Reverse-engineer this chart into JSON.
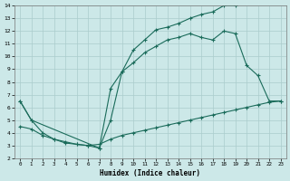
{
  "xlabel": "Humidex (Indice chaleur)",
  "bg_color": "#cce8e8",
  "grid_color": "#aacccc",
  "line_color": "#1a6b5a",
  "xlim": [
    -0.5,
    23.5
  ],
  "ylim": [
    2,
    14
  ],
  "xticks": [
    0,
    1,
    2,
    3,
    4,
    5,
    6,
    7,
    8,
    9,
    10,
    11,
    12,
    13,
    14,
    15,
    16,
    17,
    18,
    19,
    20,
    21,
    22,
    23
  ],
  "yticks": [
    2,
    3,
    4,
    5,
    6,
    7,
    8,
    9,
    10,
    11,
    12,
    13,
    14
  ],
  "line1_x": [
    0,
    1,
    2,
    3,
    4,
    5,
    6,
    7,
    8,
    9,
    10,
    11,
    12,
    13,
    14,
    15,
    16,
    17,
    18,
    19
  ],
  "line1_y": [
    6.5,
    5.0,
    4.0,
    3.5,
    3.2,
    3.1,
    3.0,
    2.8,
    5.0,
    8.8,
    10.5,
    11.3,
    12.1,
    12.3,
    12.6,
    13.0,
    13.3,
    13.5,
    14.0,
    14.0
  ],
  "line2_x": [
    0,
    1,
    7,
    8,
    9,
    10,
    11,
    12,
    13,
    14,
    15,
    16,
    17,
    18,
    19,
    20,
    21,
    22,
    23
  ],
  "line2_y": [
    6.5,
    5.0,
    2.8,
    7.5,
    8.8,
    9.5,
    10.3,
    10.8,
    11.3,
    11.5,
    11.8,
    11.5,
    11.3,
    12.0,
    11.8,
    9.3,
    8.5,
    6.5,
    6.5
  ],
  "line3_x": [
    0,
    1,
    2,
    3,
    4,
    5,
    6,
    7,
    8,
    9,
    10,
    11,
    12,
    13,
    14,
    15,
    16,
    17,
    18,
    19,
    20,
    21,
    22,
    23
  ],
  "line3_y": [
    4.5,
    4.3,
    3.8,
    3.5,
    3.3,
    3.1,
    3.0,
    3.1,
    3.5,
    3.8,
    4.0,
    4.2,
    4.4,
    4.6,
    4.8,
    5.0,
    5.2,
    5.4,
    5.6,
    5.8,
    6.0,
    6.2,
    6.4,
    6.5
  ]
}
